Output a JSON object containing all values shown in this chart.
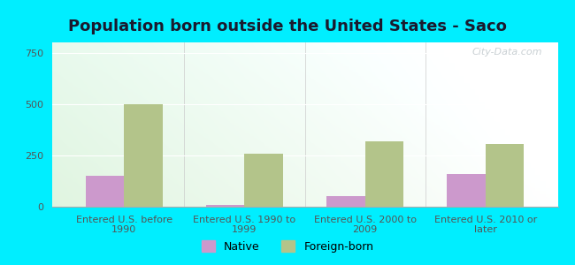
{
  "title": "Population born outside the United States - Saco",
  "categories": [
    "Entered U.S. before\n1990",
    "Entered U.S. 1990 to\n1999",
    "Entered U.S. 2000 to\n2009",
    "Entered U.S. 2010 or\nlater"
  ],
  "native_values": [
    150,
    10,
    50,
    160
  ],
  "foreign_values": [
    500,
    260,
    320,
    305
  ],
  "native_color": "#cc99cc",
  "foreign_color": "#b3c48a",
  "background_outer": "#00eeff",
  "ylim": [
    0,
    800
  ],
  "yticks": [
    0,
    250,
    500,
    750
  ],
  "bar_width": 0.32,
  "title_fontsize": 13,
  "tick_fontsize": 8,
  "legend_labels": [
    "Native",
    "Foreign-born"
  ],
  "watermark": "City-Data.com"
}
